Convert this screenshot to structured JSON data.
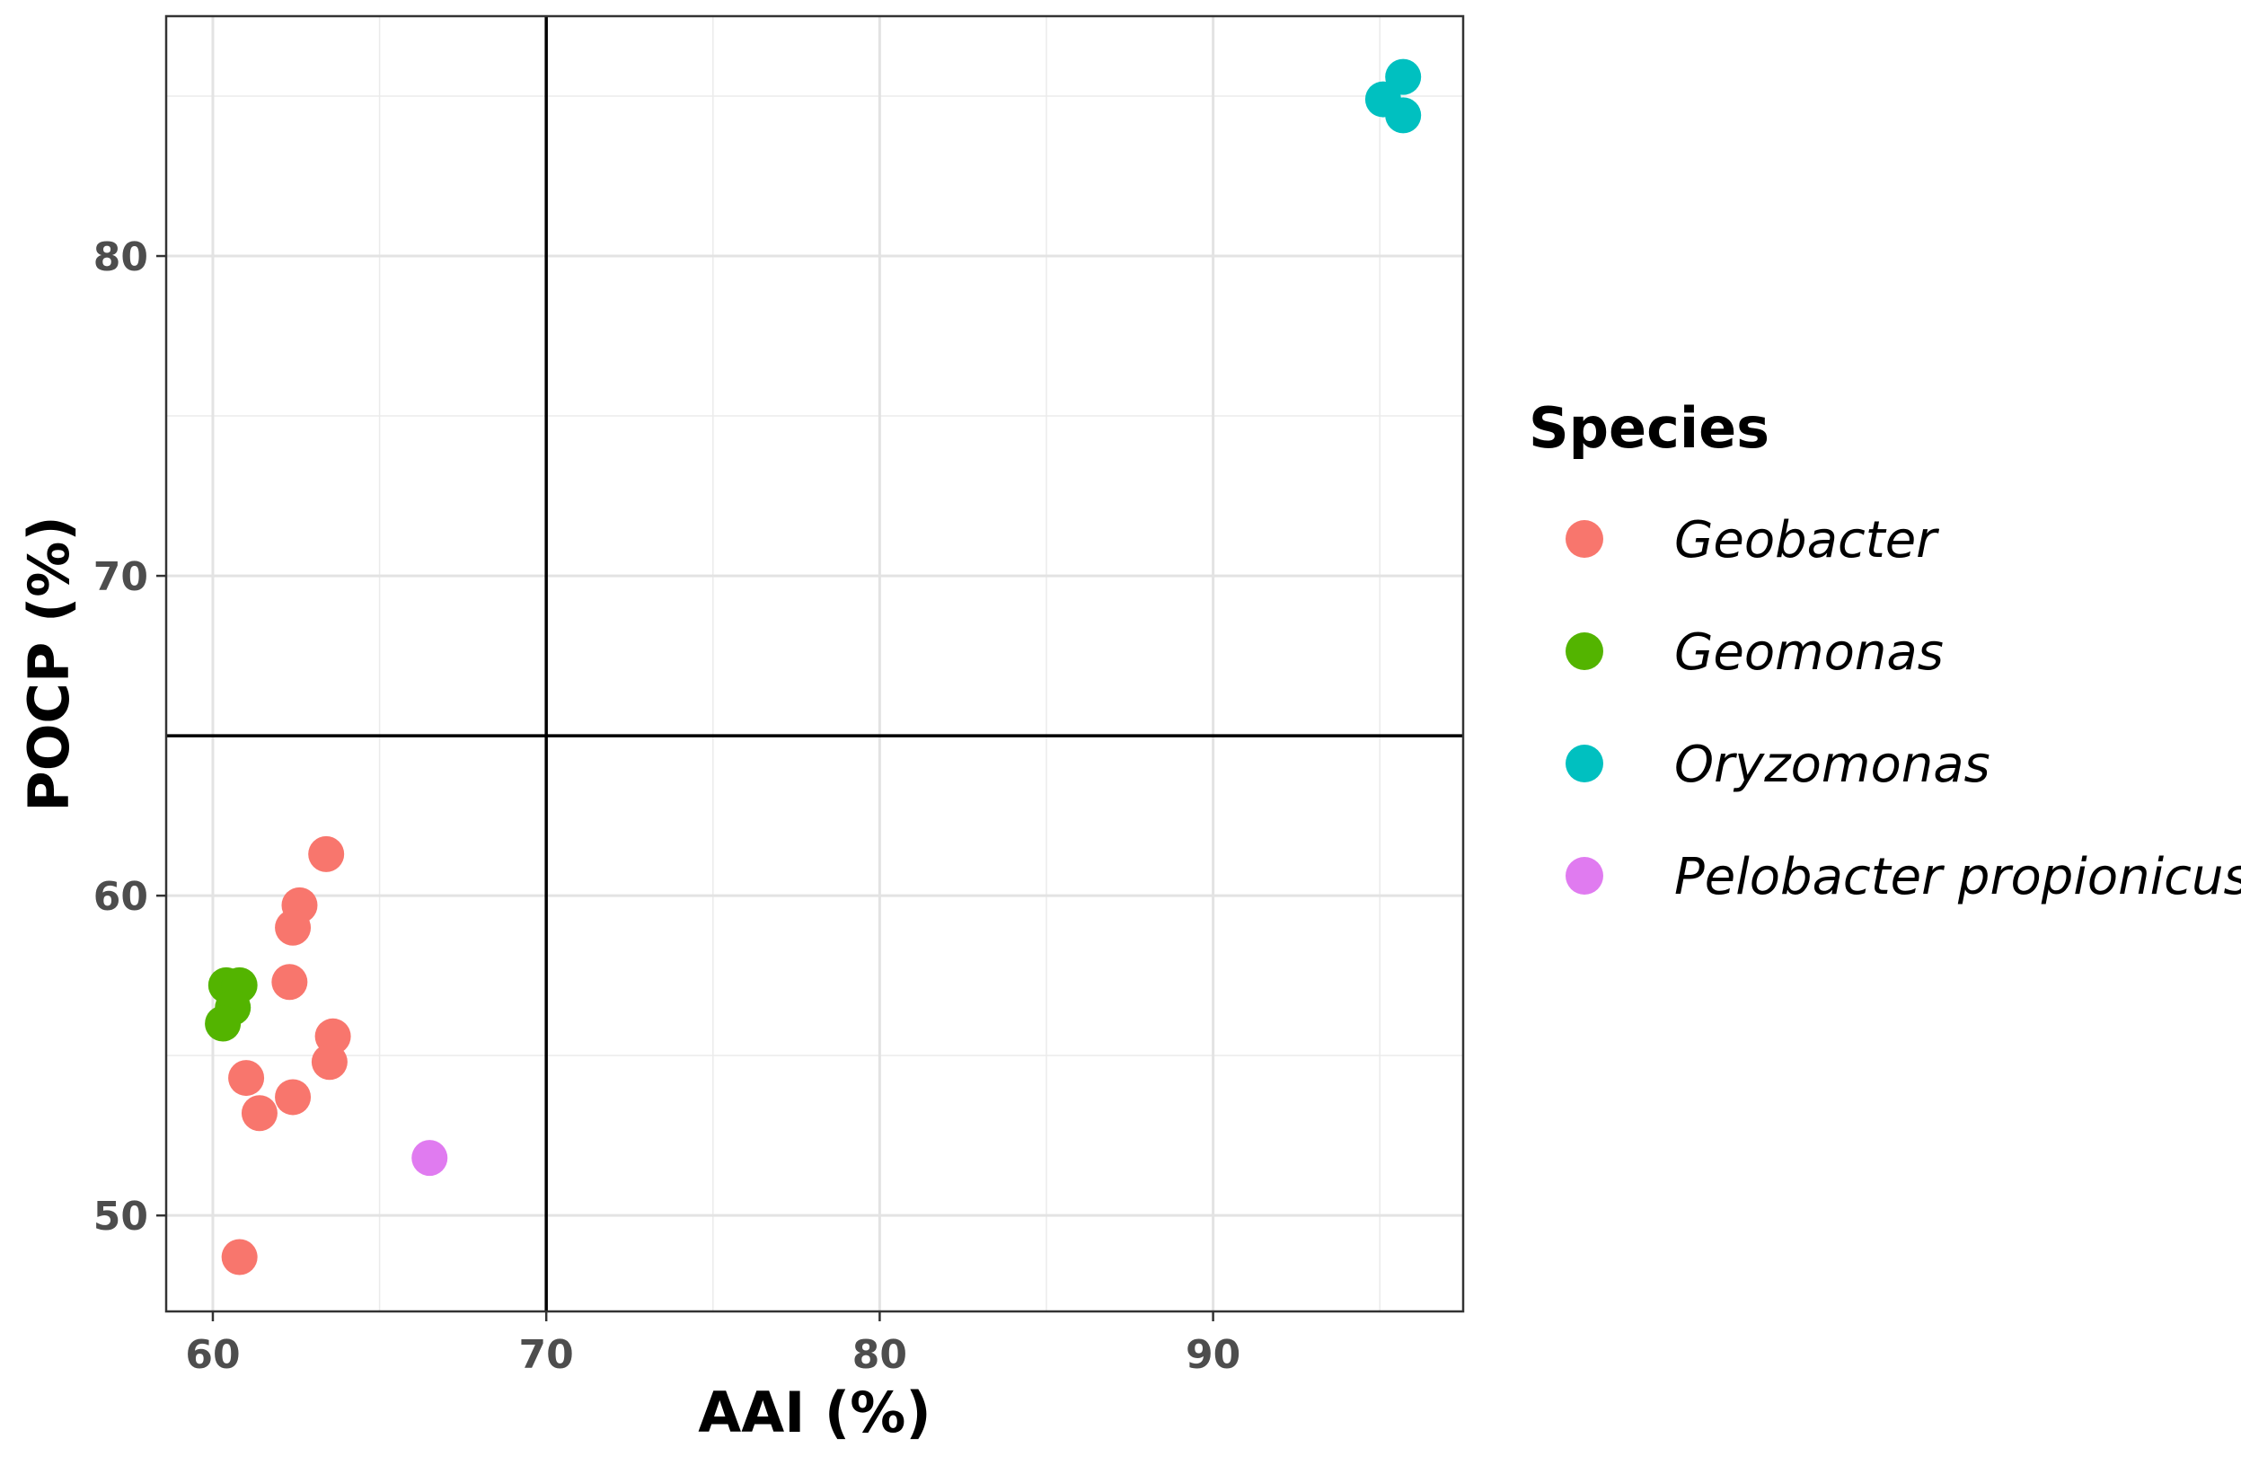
{
  "chart_data": {
    "type": "scatter",
    "xlabel": "AAI (%)",
    "ylabel": "POCP (%)",
    "xlim": [
      58.6,
      97.5
    ],
    "ylim": [
      47.0,
      87.5
    ],
    "x_ticks": [
      60,
      70,
      80,
      90
    ],
    "y_ticks": [
      50,
      60,
      70,
      80
    ],
    "x_minor_ticks": [
      65,
      75,
      85,
      95
    ],
    "y_minor_ticks": [
      55,
      65,
      75,
      85
    ],
    "grid": true,
    "reference_lines": {
      "vertical_x": 70,
      "horizontal_y": 65
    },
    "legend": {
      "title": "Species",
      "position": "right"
    },
    "series": [
      {
        "name": "Geobacter",
        "color": "#F8766D",
        "points": [
          {
            "x": 63.4,
            "y": 61.3
          },
          {
            "x": 62.6,
            "y": 59.7
          },
          {
            "x": 62.4,
            "y": 59.0
          },
          {
            "x": 62.3,
            "y": 57.3
          },
          {
            "x": 63.6,
            "y": 55.6
          },
          {
            "x": 63.5,
            "y": 54.8
          },
          {
            "x": 61.0,
            "y": 54.3
          },
          {
            "x": 62.4,
            "y": 53.7
          },
          {
            "x": 61.4,
            "y": 53.2
          },
          {
            "x": 60.8,
            "y": 48.7
          }
        ]
      },
      {
        "name": "Geomonas",
        "color": "#53B400",
        "points": [
          {
            "x": 60.4,
            "y": 57.2
          },
          {
            "x": 60.8,
            "y": 57.2
          },
          {
            "x": 60.6,
            "y": 56.5
          },
          {
            "x": 60.3,
            "y": 56.0
          }
        ]
      },
      {
        "name": "Oryzomonas",
        "color": "#00C0C0",
        "points": [
          {
            "x": 95.7,
            "y": 85.6
          },
          {
            "x": 95.1,
            "y": 84.9
          },
          {
            "x": 95.7,
            "y": 84.4
          }
        ]
      },
      {
        "name": "Pelobacter propionicus",
        "color": "#E07BF0",
        "points": [
          {
            "x": 66.5,
            "y": 51.8
          }
        ]
      }
    ]
  }
}
